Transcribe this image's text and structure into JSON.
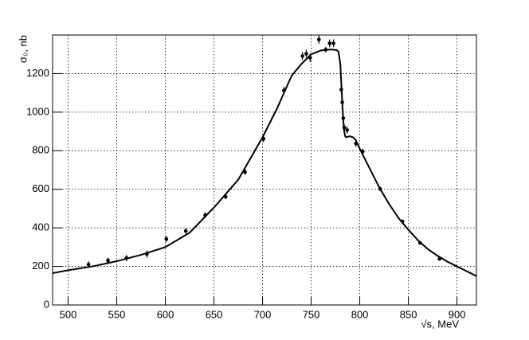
{
  "chart_data": {
    "type": "scatter",
    "x_label": "√s, MeV",
    "y_label": "σ₀, nb",
    "xlim": [
      484,
      920
    ],
    "ylim": [
      0,
      1400
    ],
    "xticks": [
      500,
      550,
      600,
      650,
      700,
      750,
      800,
      850,
      900
    ],
    "yticks": [
      0,
      200,
      400,
      600,
      800,
      1000,
      1200
    ],
    "grid": true,
    "color": "#000000",
    "points": {
      "x": [
        521,
        541,
        560,
        581,
        601,
        621,
        641,
        662,
        682,
        701,
        722,
        741,
        745,
        749,
        758,
        765,
        769,
        773,
        781,
        782,
        783,
        784,
        787,
        796,
        803,
        821,
        844,
        862,
        882
      ],
      "values": [
        210,
        231,
        243,
        264,
        342,
        384,
        466,
        561,
        689,
        862,
        1113,
        1291,
        1303,
        1282,
        1377,
        1324,
        1357,
        1357,
        1117,
        1051,
        969,
        920,
        907,
        837,
        796,
        602,
        433,
        322,
        239
      ],
      "errors": [
        16,
        14,
        16,
        18,
        16,
        14,
        14,
        12,
        14,
        18,
        18,
        20,
        20,
        22,
        22,
        14,
        20,
        20,
        20,
        20,
        18,
        18,
        18,
        16,
        14,
        12,
        10,
        8,
        8
      ]
    },
    "fit": {
      "x": [
        484,
        500,
        525,
        550,
        575,
        600,
        625,
        650,
        675,
        700,
        715,
        730,
        740,
        750,
        760,
        770,
        776,
        778,
        780,
        781,
        782,
        783,
        784,
        785,
        786,
        788,
        790,
        793,
        796,
        800,
        810,
        820,
        830,
        840,
        850,
        860,
        870,
        880,
        890,
        900,
        910,
        920
      ],
      "values": [
        165,
        180,
        200,
        227,
        260,
        300,
        375,
        505,
        650,
        870,
        1020,
        1190,
        1250,
        1300,
        1320,
        1325,
        1322,
        1315,
        1250,
        1150,
        1050,
        960,
        900,
        875,
        870,
        873,
        875,
        870,
        855,
        810,
        710,
        610,
        525,
        450,
        390,
        335,
        290,
        255,
        225,
        200,
        175,
        150
      ]
    }
  }
}
